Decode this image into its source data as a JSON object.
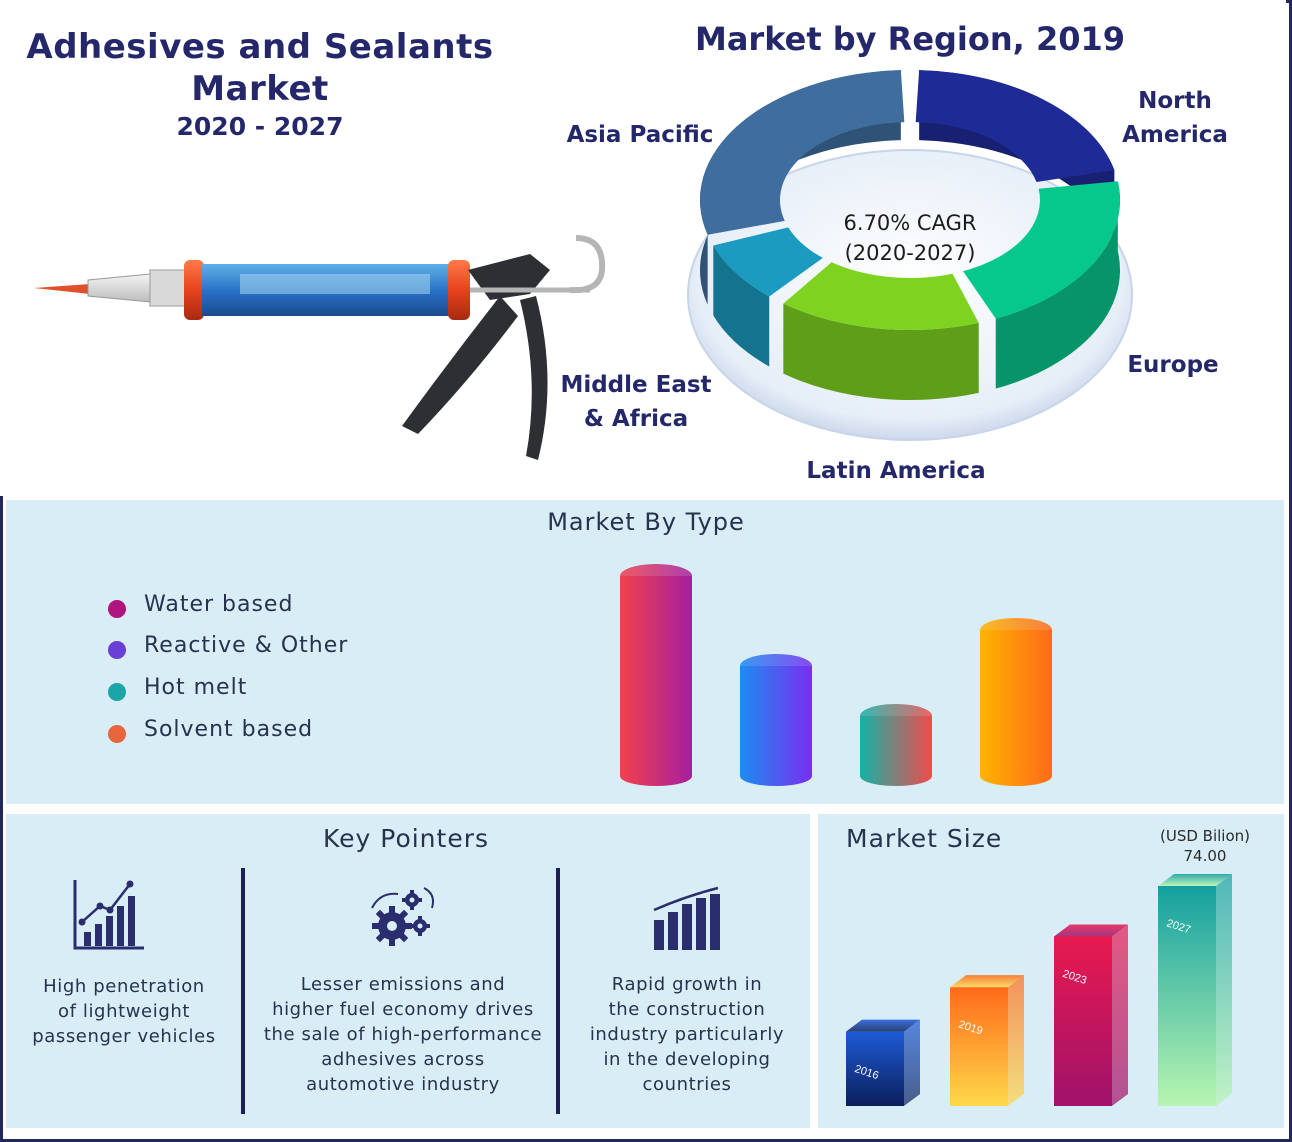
{
  "header": {
    "title_line1": "Adhesives and Sealants",
    "title_line2": "Market",
    "years": "2020 - 2027"
  },
  "region": {
    "title": "Market by Region, 2019",
    "cagr_line1": "6.70% CAGR",
    "cagr_line2": "(2020-2027)",
    "labels": {
      "asia_pacific": "Asia Pacific",
      "north_america_1": "North",
      "north_america_2": "America",
      "europe": "Europe",
      "latin_america": "Latin America",
      "mea_1": "Middle East",
      "mea_2": "& Africa"
    },
    "colors": {
      "north_america": "#1e2a96",
      "europe": "#06c78c",
      "latin_america": "#7ed321",
      "middle_east_africa": "#1a9bbf",
      "asia_pacific": "#3f6e9e"
    }
  },
  "type_section": {
    "title": "Market By Type",
    "legend": [
      {
        "label": "Water based",
        "color": "#b0147f"
      },
      {
        "label": "Reactive & Other",
        "color": "#6a3fd6"
      },
      {
        "label": "Hot melt",
        "color": "#1aa6a6"
      },
      {
        "label": "Solvent based",
        "color": "#e8643c"
      }
    ]
  },
  "key_pointers": {
    "title": "Key Pointers",
    "items": [
      {
        "icon": "line-chart-icon",
        "line1": "High penetration",
        "line2": "of lightweight",
        "line3": "passenger vehicles"
      },
      {
        "icon": "gears-icon",
        "line1": "Lesser emissions and",
        "line2": "higher fuel economy drives",
        "line3": "the sale of high-performance",
        "line4": "adhesives across",
        "line5": "automotive industry"
      },
      {
        "icon": "bar-chart-icon",
        "line1": "Rapid growth in",
        "line2": "the construction",
        "line3": "industry particularly",
        "line4": "in the developing",
        "line5": "countries"
      }
    ]
  },
  "market_size": {
    "title": "Market Size",
    "unit": "(USD Bilion)",
    "value_2027": "74.00"
  },
  "chart_data": [
    {
      "type": "pie",
      "title": "Market by Region, 2019",
      "categories": [
        "North America",
        "Europe",
        "Latin America",
        "Middle East & Africa",
        "Asia Pacific"
      ],
      "values": [
        22,
        22,
        17,
        9,
        30
      ]
    },
    {
      "type": "bar",
      "title": "Market By Type",
      "categories": [
        "Water based",
        "Reactive & Other",
        "Hot melt",
        "Solvent based"
      ],
      "values": [
        100,
        55,
        30,
        73
      ]
    },
    {
      "type": "bar",
      "title": "Market Size",
      "categories": [
        "2016",
        "2019",
        "2023",
        "2027"
      ],
      "values": [
        25,
        40,
        57,
        74.0
      ]
    }
  ]
}
